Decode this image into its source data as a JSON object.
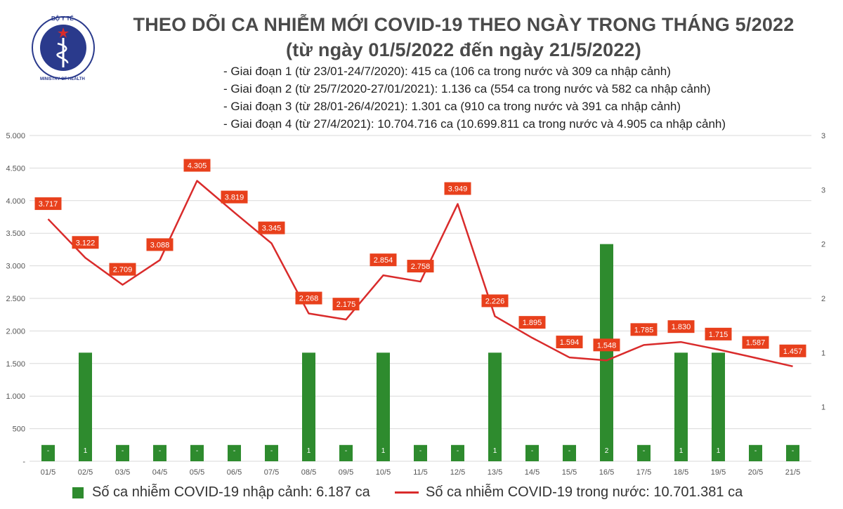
{
  "header": {
    "logo_text_top": "BỘ Y TẾ",
    "logo_text_bottom": "MINISTRY OF HEALTH",
    "title_line1": "THEO DÕI CA NHIỄM MỚI COVID-19 THEO NGÀY TRONG THÁNG 5/2022",
    "title_line2": "(từ ngày 01/5/2022 đến ngày 21/5/2022)",
    "notes": [
      "- Giai đoạn 1 (từ 23/01-24/7/2020): 415 ca (106 ca trong nước và 309 ca nhập cảnh)",
      "- Giai đoạn 2 (từ 25/7/2020-27/01/2021): 1.136 ca (554 ca trong nước và 582 ca nhập cảnh)",
      "- Giai đoạn 3 (từ 28/01-26/4/2021): 1.301 ca (910 ca trong nước và 391 ca nhập cảnh)",
      "- Giai đoạn 4 (từ 27/4/2021): 10.704.716 ca (10.699.811 ca trong nước và 4.905 ca nhập cảnh)"
    ]
  },
  "colors": {
    "bar": "#2e8b2e",
    "line": "#d92b2b",
    "label_bg": "#e8401c",
    "grid": "#d9d9d9",
    "axis_text": "#555555"
  },
  "chart_data": {
    "type": "bar+line",
    "categories": [
      "01/5",
      "02/5",
      "03/5",
      "04/5",
      "05/5",
      "06/5",
      "07/5",
      "08/5",
      "09/5",
      "10/5",
      "11/5",
      "12/5",
      "13/5",
      "14/5",
      "15/5",
      "16/5",
      "17/5",
      "18/5",
      "19/5",
      "20/5",
      "21/5"
    ],
    "series": [
      {
        "name": "Số ca nhiễm COVID-19 nhập cảnh: 6.187 ca",
        "type": "bar",
        "axis": "right",
        "values": [
          0,
          1,
          0,
          0,
          0,
          0,
          0,
          1,
          0,
          1,
          0,
          0,
          1,
          0,
          0,
          2,
          0,
          1,
          1,
          0,
          0
        ],
        "labels": [
          "-",
          "1",
          "-",
          "-",
          "-",
          "-",
          "-",
          "1",
          "-",
          "1",
          "-",
          "-",
          "1",
          "-",
          "-",
          "2",
          "-",
          "1",
          "1",
          "-",
          "-"
        ]
      },
      {
        "name": "Số ca nhiễm COVID-19 trong nước: 10.701.381 ca",
        "type": "line",
        "axis": "left",
        "values": [
          3717,
          3122,
          2709,
          3088,
          4305,
          3819,
          3345,
          2268,
          2175,
          2854,
          2758,
          3949,
          2226,
          1895,
          1594,
          1548,
          1785,
          1830,
          1715,
          1587,
          1457
        ],
        "labels": [
          "3.717",
          "3.122",
          "2.709",
          "3.088",
          "4.305",
          "3.819",
          "3.345",
          "2.268",
          "2.175",
          "2.854",
          "2.758",
          "3.949",
          "2.226",
          "1.895",
          "1.594",
          "1.548",
          "1.785",
          "1.830",
          "1.715",
          "1.587",
          "1.457"
        ]
      }
    ],
    "left_axis": {
      "ylim": [
        0,
        5000
      ],
      "ticks": [
        0,
        500,
        1000,
        1500,
        2000,
        2500,
        3000,
        3500,
        4000,
        4500,
        5000
      ],
      "tick_labels": [
        "-",
        "500",
        "1.000",
        "1.500",
        "2.000",
        "2.500",
        "3.000",
        "3.500",
        "4.000",
        "4.500",
        "5.000"
      ]
    },
    "right_axis": {
      "ylim": [
        0,
        3
      ],
      "ticks": [
        0.5,
        1,
        1.5,
        2,
        2.5,
        3
      ],
      "tick_labels": [
        "1",
        "1",
        "2",
        "2",
        "3",
        "3"
      ]
    },
    "zero_bar_value": 0.15,
    "grid": true,
    "legend_position": "bottom"
  }
}
